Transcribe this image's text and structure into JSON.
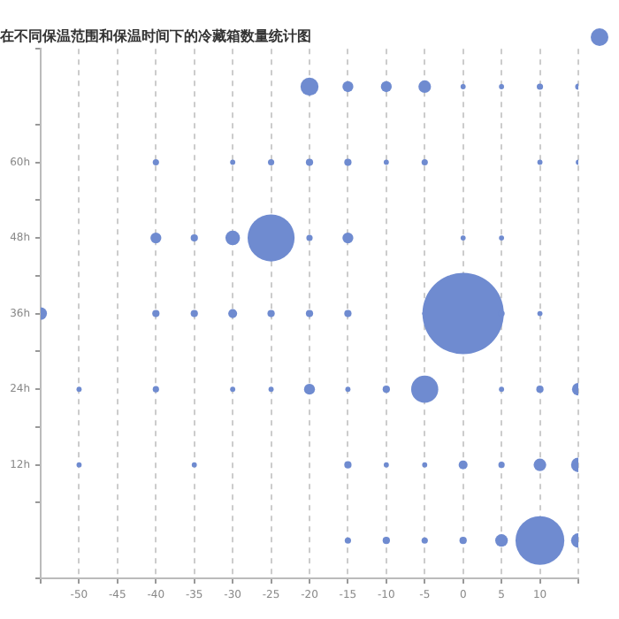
{
  "chart_data": {
    "type": "bubble",
    "title": "在不同保温范围和保温时间下的冷藏箱数量统计图",
    "legend": false,
    "grid": "x",
    "line_style": "dashed",
    "xlim": [
      -55,
      15
    ],
    "xticks": [
      {
        "value": -55,
        "label": null
      },
      -50,
      -45,
      -40,
      -35,
      -30,
      -25,
      -20,
      -15,
      -10,
      -5,
      0,
      5,
      10,
      {
        "value": 15,
        "label": null
      }
    ],
    "ylim": [
      -6,
      78
    ],
    "yticks": [
      {
        "value": -6,
        "label": null
      },
      {
        "value": 6,
        "label": null
      },
      {
        "value": 12,
        "label": "12h"
      },
      {
        "value": 18,
        "label": null
      },
      {
        "value": 24,
        "label": "24h"
      },
      {
        "value": 30,
        "label": null
      },
      {
        "value": 36,
        "label": "36h"
      },
      {
        "value": 42,
        "label": null
      },
      {
        "value": 48,
        "label": "48h"
      },
      {
        "value": 54,
        "label": null
      },
      {
        "value": 60,
        "label": "60h"
      },
      {
        "value": 66,
        "label": null
      },
      {
        "value": 78,
        "label": null
      }
    ],
    "series": [
      {
        "color": "#6f8bd0",
        "x": [
          -20,
          -15,
          -10,
          -5,
          0,
          5,
          10,
          15,
          -40,
          -30,
          -25,
          -20,
          -15,
          -10,
          -5,
          10,
          15,
          -40,
          -35,
          -30,
          -25,
          -20,
          -15,
          0,
          5,
          -55,
          -40,
          -35,
          -30,
          -25,
          -20,
          -15,
          -5,
          0,
          5,
          10,
          -50,
          -40,
          -30,
          -25,
          -20,
          -15,
          -10,
          -5,
          5,
          10,
          15,
          -50,
          -35,
          -15,
          -10,
          -5,
          0,
          5,
          10,
          15,
          -15,
          -10,
          -5,
          0,
          5,
          10,
          15
        ],
        "values": [
          72,
          72,
          72,
          72,
          72,
          72,
          72,
          72,
          60,
          60,
          60,
          60,
          60,
          60,
          60,
          60,
          60,
          48,
          48,
          48,
          48,
          48,
          48,
          48,
          48,
          36,
          36,
          36,
          36,
          36,
          36,
          36,
          36,
          36,
          36,
          36,
          24,
          24,
          24,
          24,
          24,
          24,
          24,
          24,
          24,
          24,
          24,
          12,
          12,
          12,
          12,
          12,
          12,
          12,
          12,
          12,
          0,
          0,
          0,
          0,
          0,
          0,
          0
        ],
        "sizes": [
          0.049,
          0.018,
          0.018,
          0.024,
          0.004,
          0.004,
          0.006,
          0.006,
          0.006,
          0.004,
          0.006,
          0.008,
          0.008,
          0.004,
          0.006,
          0.004,
          0.004,
          0.018,
          0.008,
          0.032,
          0.334,
          0.006,
          0.018,
          0.004,
          0.004,
          0.024,
          0.008,
          0.008,
          0.012,
          0.008,
          0.008,
          0.008,
          0.004,
          1,
          0.006,
          0.004,
          0.004,
          0.006,
          0.004,
          0.004,
          0.018,
          0.004,
          0.008,
          0.111,
          0.004,
          0.008,
          0.024,
          0.004,
          0.004,
          0.008,
          0.004,
          0.004,
          0.012,
          0.006,
          0.024,
          0.032,
          0.006,
          0.008,
          0.006,
          0.008,
          0.024,
          0.36,
          0.032
        ]
      }
    ]
  }
}
